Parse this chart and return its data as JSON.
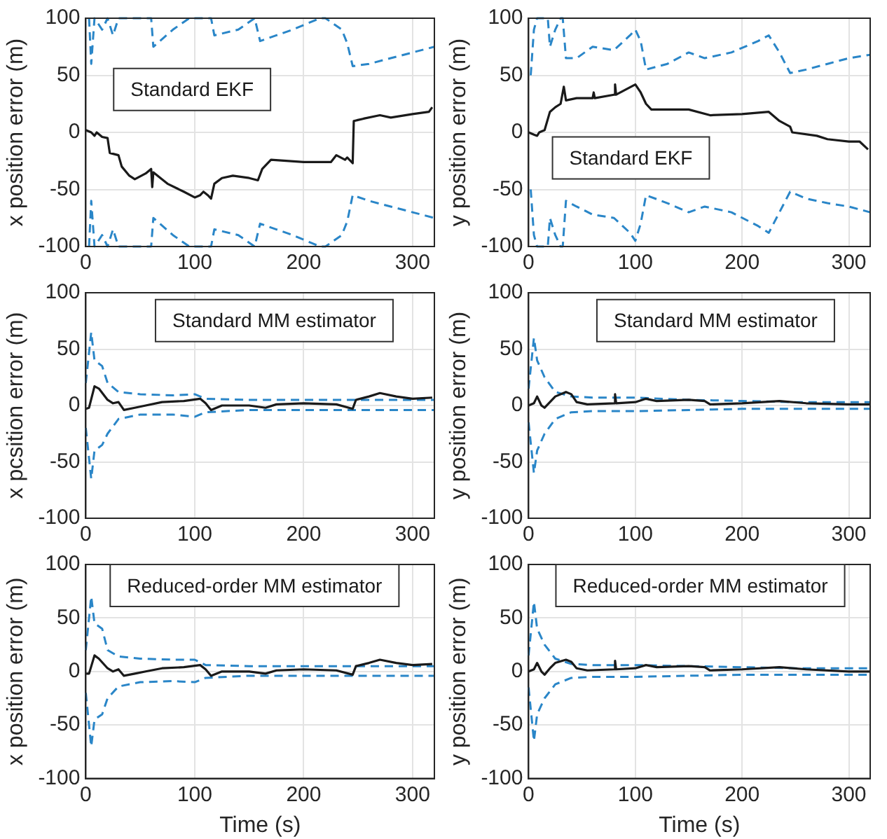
{
  "chart_data": [
    {
      "type": "line",
      "ylabel": "x position error (m)",
      "xlim": [
        0,
        320
      ],
      "xticks": [
        0,
        100,
        200,
        300
      ],
      "ylim": [
        -100,
        100
      ],
      "yticks": [
        -100,
        -50,
        0,
        50,
        100
      ],
      "grid": true,
      "marker": "none",
      "annotations": [
        "Standard EKF"
      ],
      "series": [
        {
          "color": "#1a1a1a",
          "line_style": "solid",
          "x": [
            0,
            5,
            8,
            10,
            15,
            20,
            22,
            30,
            33,
            40,
            45,
            55,
            60,
            61,
            62,
            75,
            90,
            100,
            105,
            108,
            112,
            115,
            118,
            125,
            135,
            150,
            158,
            162,
            170,
            200,
            225,
            230,
            238,
            240,
            245,
            246,
            255,
            270,
            280,
            300,
            315,
            318
          ],
          "values": [
            2,
            0,
            -3,
            0,
            -4,
            -5,
            -18,
            -20,
            -30,
            -38,
            -41,
            -36,
            -32,
            -48,
            -35,
            -45,
            -52,
            -57,
            -55,
            -52,
            -55,
            -58,
            -45,
            -40,
            -38,
            -40,
            -42,
            -32,
            -24,
            -26,
            -26,
            -20,
            -24,
            -22,
            -27,
            10,
            12,
            15,
            13,
            16,
            18,
            22
          ]
        },
        {
          "color": "#2a86c8",
          "line_style": "dashed",
          "x": [
            3,
            5,
            8,
            15,
            20,
            25,
            30,
            60,
            62,
            80,
            95,
            115,
            118,
            140,
            155,
            160,
            175,
            190,
            215,
            220,
            235,
            240,
            245,
            260,
            280,
            300,
            320
          ],
          "values": [
            100,
            60,
            100,
            90,
            100,
            85,
            100,
            100,
            75,
            90,
            100,
            100,
            85,
            90,
            100,
            80,
            85,
            90,
            100,
            100,
            90,
            78,
            58,
            60,
            65,
            70,
            75
          ]
        },
        {
          "color": "#2a86c8",
          "line_style": "dashed",
          "x": [
            3,
            5,
            8,
            15,
            20,
            25,
            30,
            60,
            62,
            80,
            95,
            115,
            118,
            140,
            155,
            160,
            175,
            190,
            215,
            220,
            235,
            240,
            245,
            260,
            280,
            300,
            320
          ],
          "values": [
            -100,
            -60,
            -100,
            -90,
            -100,
            -85,
            -100,
            -100,
            -75,
            -90,
            -100,
            -100,
            -85,
            -90,
            -100,
            -80,
            -85,
            -90,
            -100,
            -100,
            -90,
            -78,
            -55,
            -60,
            -65,
            -70,
            -75
          ]
        }
      ]
    },
    {
      "type": "line",
      "ylabel": "y position error (m)",
      "xlim": [
        0,
        320
      ],
      "xticks": [
        0,
        100,
        200,
        300
      ],
      "ylim": [
        -100,
        100
      ],
      "yticks": [
        -100,
        -50,
        0,
        50,
        100
      ],
      "grid": true,
      "marker": "none",
      "annotations": [
        "Standard EKF"
      ],
      "series": [
        {
          "color": "#1a1a1a",
          "line_style": "solid",
          "x": [
            0,
            5,
            8,
            10,
            15,
            20,
            25,
            30,
            33,
            35,
            45,
            60,
            61,
            62,
            80,
            81,
            82,
            100,
            105,
            110,
            115,
            140,
            150,
            170,
            200,
            225,
            235,
            245,
            247,
            270,
            280,
            300,
            310,
            318
          ],
          "values": [
            0,
            -2,
            -3,
            0,
            2,
            18,
            22,
            25,
            40,
            28,
            30,
            30,
            35,
            30,
            33,
            42,
            33,
            42,
            35,
            25,
            20,
            20,
            20,
            15,
            16,
            18,
            10,
            5,
            0,
            -3,
            -6,
            -8,
            -8,
            -15
          ]
        },
        {
          "color": "#2a86c8",
          "line_style": "dashed",
          "x": [
            2,
            5,
            8,
            10,
            18,
            20,
            25,
            30,
            32,
            35,
            45,
            60,
            80,
            95,
            100,
            105,
            110,
            130,
            150,
            165,
            190,
            215,
            225,
            235,
            245,
            260,
            280,
            300,
            320
          ],
          "values": [
            50,
            90,
            100,
            100,
            100,
            75,
            90,
            100,
            100,
            65,
            65,
            75,
            72,
            85,
            90,
            80,
            55,
            60,
            70,
            65,
            70,
            80,
            85,
            70,
            52,
            55,
            60,
            65,
            68
          ]
        },
        {
          "color": "#2a86c8",
          "line_style": "dashed",
          "x": [
            2,
            5,
            8,
            10,
            18,
            20,
            25,
            30,
            32,
            35,
            45,
            60,
            80,
            95,
            100,
            105,
            110,
            130,
            150,
            165,
            190,
            215,
            225,
            235,
            245,
            260,
            280,
            300,
            320
          ],
          "values": [
            -50,
            -90,
            -100,
            -100,
            -100,
            -75,
            -90,
            -100,
            -100,
            -60,
            -65,
            -72,
            -75,
            -88,
            -95,
            -80,
            -55,
            -62,
            -70,
            -65,
            -70,
            -82,
            -88,
            -70,
            -52,
            -58,
            -62,
            -65,
            -70
          ]
        }
      ]
    },
    {
      "type": "line",
      "ylabel": "x pcsition error (m)",
      "xlim": [
        0,
        320
      ],
      "xticks": [
        0,
        100,
        200,
        300
      ],
      "ylim": [
        -100,
        100
      ],
      "yticks": [
        -100,
        -50,
        0,
        50,
        100
      ],
      "grid": true,
      "marker": "none",
      "annotations": [
        "Standard MM estimator"
      ],
      "series": [
        {
          "color": "#1a1a1a",
          "line_style": "solid",
          "x": [
            0,
            3,
            8,
            12,
            20,
            25,
            30,
            35,
            45,
            55,
            70,
            90,
            105,
            110,
            115,
            125,
            150,
            165,
            175,
            200,
            230,
            245,
            248,
            260,
            270,
            285,
            300,
            318
          ],
          "values": [
            -3,
            -2,
            17,
            15,
            5,
            2,
            3,
            -4,
            -2,
            0,
            3,
            4,
            6,
            2,
            -4,
            0,
            0,
            -2,
            1,
            2,
            1,
            -3,
            5,
            8,
            11,
            8,
            6,
            7
          ]
        },
        {
          "color": "#2a86c8",
          "line_style": "dashed",
          "x": [
            0,
            5,
            8,
            15,
            20,
            30,
            50,
            80,
            100,
            110,
            150,
            200,
            250,
            320
          ],
          "values": [
            20,
            65,
            40,
            35,
            20,
            12,
            10,
            9,
            10,
            6,
            5,
            5,
            5,
            5
          ]
        },
        {
          "color": "#2a86c8",
          "line_style": "dashed",
          "x": [
            0,
            5,
            8,
            15,
            20,
            30,
            50,
            80,
            100,
            110,
            150,
            200,
            250,
            320
          ],
          "values": [
            -20,
            -65,
            -40,
            -35,
            -25,
            -12,
            -8,
            -8,
            -10,
            -6,
            -4,
            -4,
            -4,
            -4
          ]
        }
      ]
    },
    {
      "type": "line",
      "ylabel": "y position error (m)",
      "xlim": [
        0,
        320
      ],
      "xticks": [
        0,
        100,
        200,
        300
      ],
      "ylim": [
        -100,
        100
      ],
      "yticks": [
        -100,
        -50,
        0,
        50,
        100
      ],
      "grid": true,
      "marker": "none",
      "annotations": [
        "Standard MM estimator"
      ],
      "series": [
        {
          "color": "#1a1a1a",
          "line_style": "solid",
          "x": [
            0,
            5,
            8,
            12,
            15,
            20,
            25,
            35,
            40,
            45,
            55,
            80,
            81,
            82,
            100,
            110,
            120,
            150,
            165,
            170,
            200,
            235,
            260,
            300,
            320
          ],
          "values": [
            0,
            2,
            8,
            0,
            -2,
            3,
            8,
            12,
            10,
            3,
            1,
            2,
            10,
            2,
            3,
            6,
            4,
            5,
            4,
            1,
            2,
            4,
            2,
            1,
            1
          ]
        },
        {
          "color": "#2a86c8",
          "line_style": "dashed",
          "x": [
            0,
            5,
            8,
            15,
            25,
            40,
            60,
            100,
            150,
            200,
            250,
            320
          ],
          "values": [
            15,
            60,
            40,
            25,
            12,
            8,
            7,
            7,
            5,
            4,
            3,
            3
          ]
        },
        {
          "color": "#2a86c8",
          "line_style": "dashed",
          "x": [
            0,
            5,
            8,
            15,
            25,
            40,
            60,
            100,
            150,
            200,
            250,
            320
          ],
          "values": [
            -15,
            -60,
            -40,
            -25,
            -12,
            -6,
            -5,
            -5,
            -4,
            -3,
            -3,
            -3
          ]
        }
      ]
    },
    {
      "type": "line",
      "xlabel": "Time (s)",
      "ylabel": "x position error (m)",
      "xlim": [
        0,
        320
      ],
      "xticks": [
        0,
        100,
        200,
        300
      ],
      "ylim": [
        -100,
        100
      ],
      "yticks": [
        -100,
        -50,
        0,
        50,
        100
      ],
      "grid": true,
      "marker": "none",
      "annotations": [
        "Reduced-order MM estimator"
      ],
      "series": [
        {
          "color": "#1a1a1a",
          "line_style": "solid",
          "x": [
            0,
            3,
            8,
            12,
            20,
            25,
            30,
            35,
            45,
            55,
            70,
            90,
            105,
            110,
            115,
            125,
            150,
            165,
            175,
            200,
            230,
            245,
            248,
            260,
            270,
            285,
            300,
            318
          ],
          "values": [
            -2,
            -2,
            15,
            12,
            3,
            0,
            2,
            -4,
            -2,
            0,
            3,
            4,
            6,
            2,
            -4,
            0,
            0,
            -2,
            1,
            2,
            1,
            -3,
            5,
            8,
            11,
            8,
            6,
            7
          ]
        },
        {
          "color": "#2a86c8",
          "line_style": "dashed",
          "x": [
            0,
            5,
            8,
            15,
            20,
            30,
            50,
            80,
            100,
            110,
            150,
            200,
            250,
            320
          ],
          "values": [
            20,
            70,
            45,
            40,
            20,
            14,
            12,
            11,
            11,
            6,
            5,
            5,
            5,
            5
          ]
        },
        {
          "color": "#2a86c8",
          "line_style": "dashed",
          "x": [
            0,
            5,
            8,
            15,
            20,
            30,
            50,
            80,
            100,
            110,
            150,
            200,
            250,
            320
          ],
          "values": [
            -20,
            -70,
            -45,
            -40,
            -25,
            -14,
            -10,
            -9,
            -10,
            -6,
            -4,
            -4,
            -4,
            -4
          ]
        }
      ]
    },
    {
      "type": "line",
      "xlabel": "Time (s)",
      "ylabel": "y position error (m)",
      "xlim": [
        0,
        320
      ],
      "xticks": [
        0,
        100,
        200,
        300
      ],
      "ylim": [
        -100,
        100
      ],
      "yticks": [
        -100,
        -50,
        0,
        50,
        100
      ],
      "grid": true,
      "marker": "none",
      "annotations": [
        "Reduced-order MM estimator"
      ],
      "series": [
        {
          "color": "#1a1a1a",
          "line_style": "solid",
          "x": [
            0,
            5,
            8,
            12,
            15,
            20,
            25,
            35,
            40,
            45,
            55,
            80,
            81,
            82,
            100,
            110,
            120,
            150,
            165,
            170,
            200,
            235,
            260,
            300,
            320
          ],
          "values": [
            0,
            2,
            8,
            0,
            -3,
            3,
            8,
            11,
            9,
            3,
            1,
            2,
            10,
            2,
            3,
            6,
            4,
            5,
            4,
            1,
            2,
            4,
            2,
            0,
            0
          ]
        },
        {
          "color": "#2a86c8",
          "line_style": "dashed",
          "x": [
            0,
            5,
            8,
            15,
            25,
            40,
            60,
            100,
            150,
            200,
            250,
            320
          ],
          "values": [
            15,
            65,
            40,
            25,
            12,
            7,
            6,
            6,
            5,
            4,
            3,
            3
          ]
        },
        {
          "color": "#2a86c8",
          "line_style": "dashed",
          "x": [
            0,
            5,
            8,
            15,
            25,
            40,
            60,
            100,
            150,
            200,
            250,
            320
          ],
          "values": [
            -15,
            -65,
            -40,
            -25,
            -12,
            -6,
            -5,
            -5,
            -4,
            -3,
            -3,
            -3
          ]
        }
      ]
    }
  ]
}
